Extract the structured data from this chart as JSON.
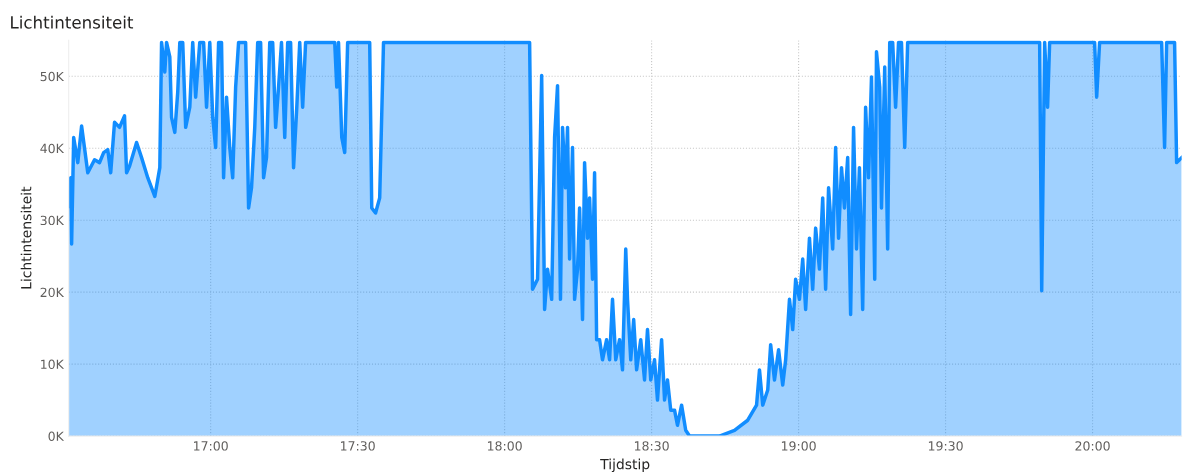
{
  "chart_data": {
    "type": "area",
    "title": "Lichtintensiteit",
    "xlabel": "Tijdstip",
    "ylabel": "Lichtintensiteit",
    "xlim": [
      16.517,
      20.303
    ],
    "ylim": [
      0,
      55000
    ],
    "xticks": [
      {
        "value": 17,
        "label": "17:00"
      },
      {
        "value": 17.5,
        "label": "17:30"
      },
      {
        "value": 18,
        "label": "18:00"
      },
      {
        "value": 18.5,
        "label": "18:30"
      },
      {
        "value": 19,
        "label": "19:00"
      },
      {
        "value": 19.5,
        "label": "19:30"
      },
      {
        "value": 20,
        "label": "20:00"
      }
    ],
    "yticks": [
      {
        "value": 0,
        "label": "0K"
      },
      {
        "value": 10000,
        "label": "10K"
      },
      {
        "value": 20000,
        "label": "20K"
      },
      {
        "value": 30000,
        "label": "30K"
      },
      {
        "value": 40000,
        "label": "40K"
      },
      {
        "value": 50000,
        "label": "50K"
      }
    ],
    "grid": true,
    "legend": false,
    "marker": "none",
    "line_style": "solid",
    "series": [
      {
        "color": "#118dff",
        "x": [
          16.517,
          16.524,
          16.527,
          16.534,
          16.548,
          16.561,
          16.582,
          16.605,
          16.622,
          16.636,
          16.65,
          16.66,
          16.673,
          16.69,
          16.707,
          16.714,
          16.724,
          16.748,
          16.765,
          16.786,
          16.81,
          16.827,
          16.833,
          16.844,
          16.85,
          16.861,
          16.867,
          16.878,
          16.888,
          16.895,
          16.905,
          16.915,
          16.929,
          16.939,
          16.949,
          16.963,
          16.976,
          16.986,
          16.997,
          17.007,
          17.017,
          17.027,
          17.037,
          17.044,
          17.054,
          17.065,
          17.075,
          17.085,
          17.095,
          17.109,
          17.119,
          17.129,
          17.139,
          17.15,
          17.16,
          17.17,
          17.18,
          17.19,
          17.201,
          17.211,
          17.221,
          17.231,
          17.241,
          17.252,
          17.262,
          17.272,
          17.282,
          17.293,
          17.303,
          17.313,
          17.323,
          17.337,
          17.422,
          17.429,
          17.435,
          17.446,
          17.456,
          17.466,
          17.541,
          17.548,
          17.561,
          17.575,
          17.588,
          18.085,
          18.095,
          18.112,
          18.126,
          18.136,
          18.146,
          18.16,
          18.17,
          18.18,
          18.19,
          18.197,
          18.207,
          18.214,
          18.221,
          18.231,
          18.238,
          18.248,
          18.255,
          18.265,
          18.272,
          18.282,
          18.289,
          18.299,
          18.306,
          18.313,
          18.323,
          18.333,
          18.347,
          18.357,
          18.367,
          18.378,
          18.391,
          18.401,
          18.412,
          18.418,
          18.429,
          18.439,
          18.449,
          18.463,
          18.476,
          18.486,
          18.497,
          18.51,
          18.52,
          18.534,
          18.544,
          18.554,
          18.565,
          18.578,
          18.588,
          18.602,
          18.616,
          18.629,
          18.663,
          18.731,
          18.782,
          18.827,
          18.857,
          18.867,
          18.878,
          18.895,
          18.905,
          18.918,
          18.932,
          18.946,
          18.956,
          18.969,
          18.98,
          18.99,
          19.003,
          19.014,
          19.024,
          19.037,
          19.048,
          19.058,
          19.071,
          19.082,
          19.092,
          19.102,
          19.116,
          19.126,
          19.136,
          19.146,
          19.156,
          19.167,
          19.177,
          19.187,
          19.197,
          19.207,
          19.218,
          19.228,
          19.238,
          19.248,
          19.259,
          19.265,
          19.276,
          19.282,
          19.293,
          19.303,
          19.31,
          19.32,
          19.33,
          19.34,
          19.35,
          19.361,
          19.371,
          19.378,
          19.82,
          19.827,
          19.837,
          19.847,
          19.854,
          20.007,
          20.014,
          20.024,
          20.235,
          20.245,
          20.252,
          20.279,
          20.286,
          20.303
        ],
        "values": [
          31900,
          35900,
          26700,
          41500,
          38000,
          43100,
          36600,
          38400,
          38000,
          39400,
          39800,
          36600,
          43600,
          42900,
          44500,
          36600,
          37500,
          40800,
          38700,
          35900,
          33300,
          37300,
          54700,
          50600,
          54700,
          52700,
          44300,
          42200,
          47800,
          54700,
          54700,
          42900,
          45700,
          54700,
          47100,
          54700,
          54700,
          45700,
          54700,
          44300,
          40100,
          54700,
          54700,
          35900,
          47100,
          40100,
          35900,
          48500,
          54700,
          54700,
          54700,
          31700,
          34500,
          42900,
          54700,
          54700,
          35900,
          38700,
          54700,
          54700,
          42900,
          48500,
          54700,
          41500,
          54700,
          54700,
          37300,
          45700,
          54700,
          45700,
          54700,
          54700,
          54700,
          48500,
          54700,
          41500,
          39400,
          54700,
          54700,
          31700,
          31000,
          33100,
          54700,
          54700,
          20400,
          21800,
          50100,
          17600,
          23200,
          19000,
          41500,
          48700,
          19000,
          42900,
          34500,
          42900,
          24600,
          40100,
          19000,
          23200,
          31700,
          16200,
          38000,
          27500,
          33100,
          21800,
          36600,
          13400,
          13400,
          10600,
          13400,
          10600,
          19000,
          10600,
          13400,
          9200,
          26000,
          19000,
          10600,
          16200,
          9200,
          13400,
          7800,
          14800,
          7800,
          10600,
          5000,
          13400,
          5000,
          7800,
          3600,
          3600,
          1500,
          4300,
          800,
          0,
          0,
          0,
          800,
          2200,
          4300,
          9200,
          4300,
          6400,
          12700,
          7800,
          12000,
          7100,
          10600,
          19000,
          14800,
          21800,
          19000,
          24600,
          17600,
          27500,
          20400,
          28900,
          23200,
          33100,
          20400,
          34500,
          26000,
          40100,
          27500,
          37300,
          31700,
          38700,
          16900,
          42900,
          26000,
          37300,
          17600,
          45700,
          35900,
          49900,
          21800,
          53400,
          48500,
          31700,
          51300,
          26000,
          54700,
          54700,
          45700,
          54700,
          54700,
          40100,
          54700,
          54700,
          54700,
          20200,
          54700,
          45700,
          54700,
          54700,
          47100,
          54700,
          54700,
          40100,
          54700,
          54700,
          38000,
          38700
        ]
      }
    ]
  }
}
